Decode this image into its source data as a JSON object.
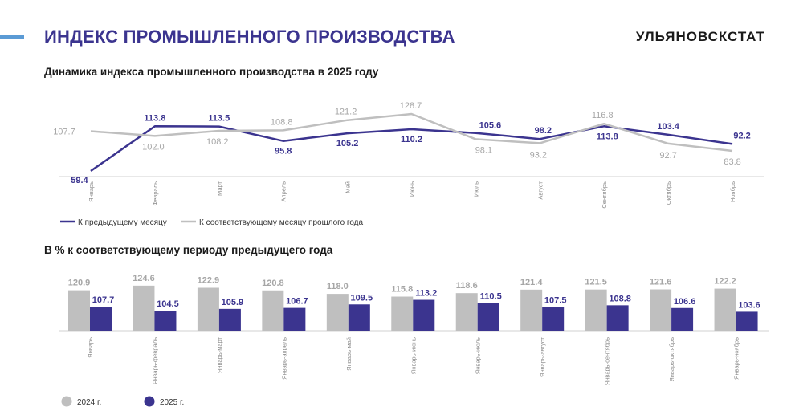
{
  "header": {
    "title": "ИНДЕКС ПРОМЫШЛЕННОГО ПРОИЗВОДСТВА",
    "brand": "УЛЬЯНОВСКСТАТ"
  },
  "colors": {
    "dark": "#3b348f",
    "light": "#bfbfbf",
    "accent": "#5b9bd5"
  },
  "chart_data": [
    {
      "type": "line",
      "title": "Динамика индекса промышленного производства в 2025 году",
      "categories": [
        "Январь",
        "Февраль",
        "Март",
        "Апрель",
        "Май",
        "Июнь",
        "Июль",
        "Август",
        "Сентябрь",
        "Октябрь",
        "Ноябрь"
      ],
      "series": [
        {
          "name": "К предыдущему месяцу",
          "values": [
            59.4,
            113.8,
            113.5,
            95.8,
            105.2,
            110.2,
            105.6,
            98.2,
            113.8,
            103.4,
            92.2
          ]
        },
        {
          "name": "К соответствующему месяцу прошлого года",
          "values": [
            107.7,
            102.0,
            108.2,
            108.8,
            121.2,
            128.7,
            98.1,
            93.2,
            116.8,
            92.7,
            83.8
          ]
        }
      ],
      "legend": "bottom-left",
      "grid": false
    },
    {
      "type": "bar",
      "title": "В % к соответствующему периоду предыдущего года",
      "categories": [
        "Январь",
        "Январь-февраль",
        "Январь-март",
        "Январь-апрель",
        "Январь-май",
        "Январь-июнь",
        "Январь-июль",
        "Январь-август",
        "Январь-сентябрь",
        "Январь-октябрь",
        "Январь-ноябрь"
      ],
      "series": [
        {
          "name": "2024 г.",
          "values": [
            120.9,
            124.6,
            122.9,
            120.8,
            118.0,
            115.8,
            118.6,
            121.4,
            121.5,
            121.6,
            122.2
          ]
        },
        {
          "name": "2025 г.",
          "values": [
            107.7,
            104.5,
            105.9,
            106.7,
            109.5,
            113.2,
            110.5,
            107.5,
            108.8,
            106.6,
            103.6
          ]
        }
      ],
      "legend": "bottom-left",
      "grid": false
    }
  ]
}
